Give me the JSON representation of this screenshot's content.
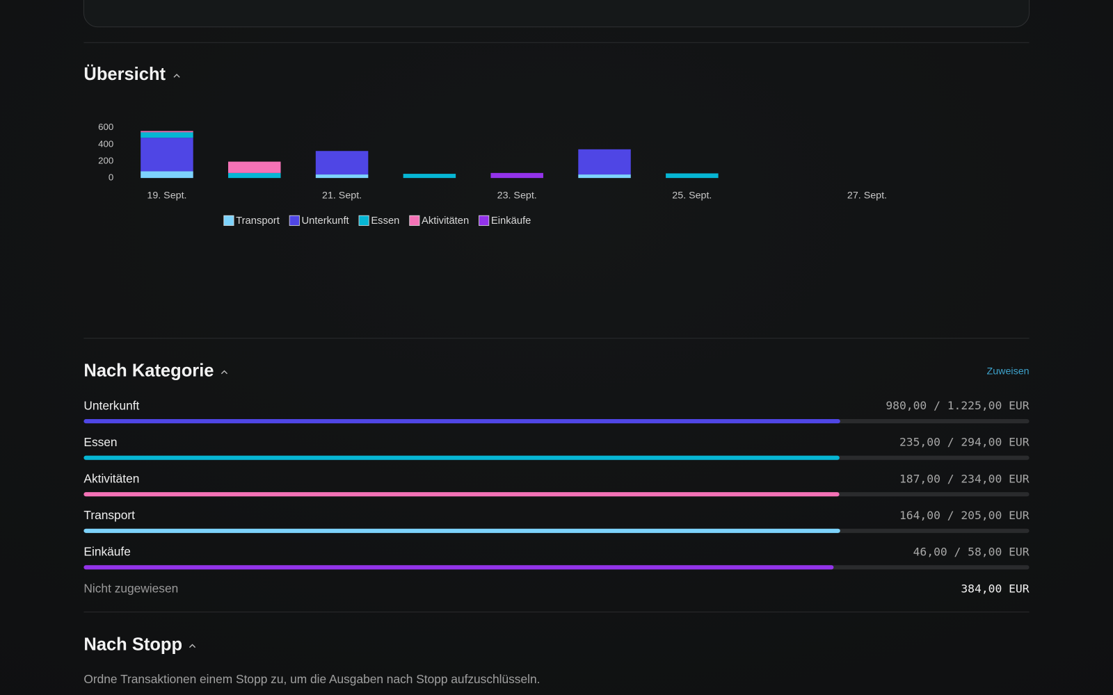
{
  "overview": {
    "title": "Übersicht"
  },
  "chart_data": {
    "type": "bar",
    "stacked": true,
    "categories": [
      "19. Sept.",
      null,
      "21. Sept.",
      null,
      "23. Sept.",
      null,
      "25. Sept.",
      null,
      "27. Sept.",
      null
    ],
    "series": [
      {
        "name": "Transport",
        "color": "#7dd3fc",
        "values": [
          80,
          0,
          42,
          0,
          0,
          42,
          0,
          0,
          0,
          0
        ]
      },
      {
        "name": "Unterkunft",
        "color": "#4f46e5",
        "values": [
          400,
          0,
          280,
          0,
          0,
          300,
          0,
          0,
          0,
          0
        ]
      },
      {
        "name": "Essen",
        "color": "#06b6d4",
        "values": [
          65,
          60,
          0,
          50,
          0,
          0,
          55,
          0,
          0,
          0
        ]
      },
      {
        "name": "Aktivitäten",
        "color": "#f472b6",
        "values": [
          15,
          135,
          0,
          0,
          0,
          0,
          0,
          0,
          0,
          0
        ]
      },
      {
        "name": "Einkäufe",
        "color": "#9333ea",
        "values": [
          0,
          0,
          0,
          0,
          60,
          0,
          0,
          0,
          0,
          0
        ]
      }
    ],
    "ylim": [
      0,
      600
    ],
    "yticks": [
      0,
      200,
      400,
      600
    ],
    "grid": false,
    "legend": "bottom"
  },
  "by_category": {
    "title": "Nach Kategorie",
    "action": "Zuweisen",
    "rows": [
      {
        "name": "Unterkunft",
        "spent": 980,
        "budget": 1225,
        "amount_label": "980,00 / 1.225,00 EUR",
        "color": "#4f46e5"
      },
      {
        "name": "Essen",
        "spent": 235,
        "budget": 294,
        "amount_label": "235,00 / 294,00 EUR",
        "color": "#06b6d4"
      },
      {
        "name": "Aktivitäten",
        "spent": 187,
        "budget": 234,
        "amount_label": "187,00 / 234,00 EUR",
        "color": "#f472b6"
      },
      {
        "name": "Transport",
        "spent": 164,
        "budget": 205,
        "amount_label": "164,00 / 205,00 EUR",
        "color": "#7dd3fc"
      },
      {
        "name": "Einkäufe",
        "spent": 46,
        "budget": 58,
        "amount_label": "46,00 / 58,00 EUR",
        "color": "#9333ea"
      }
    ],
    "unassigned": {
      "label": "Nicht zugewiesen",
      "amount_label": "384,00 EUR"
    }
  },
  "by_stop": {
    "title": "Nach Stopp",
    "description": "Ordne Transaktionen einem Stopp zu, um die Ausgaben nach Stopp aufzuschlüsseln."
  }
}
